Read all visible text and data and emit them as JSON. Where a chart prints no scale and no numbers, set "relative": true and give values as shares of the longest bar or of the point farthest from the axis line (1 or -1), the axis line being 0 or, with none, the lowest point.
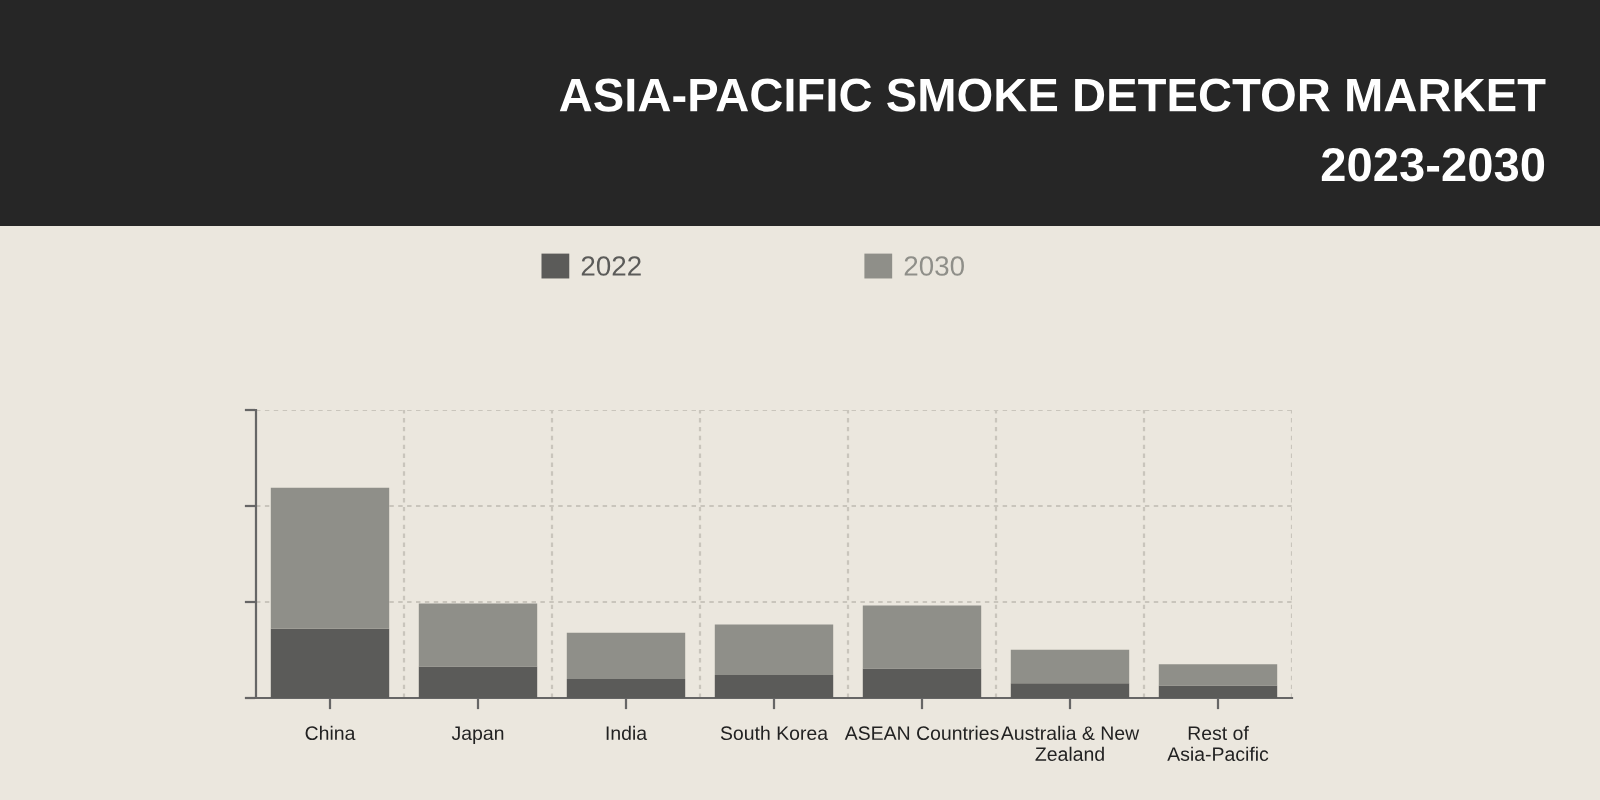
{
  "chart_data": {
    "type": "bar",
    "title": "ASIA-PACIFIC SMOKE DETECTOR MARKET\n2023-2030",
    "categories": [
      "China",
      "Japan",
      "India",
      "South Korea",
      "ASEAN Countries",
      "Australia & New\nZealand",
      "Rest of\nAsia-Pacific"
    ],
    "series": [
      {
        "name": "2022",
        "color": "#5b5b59",
        "values": [
          0.33,
          0.15,
          0.09,
          0.11,
          0.14,
          0.07,
          0.06
        ]
      },
      {
        "name": "2030",
        "color": "#8f8f89",
        "values": [
          0.67,
          0.3,
          0.22,
          0.24,
          0.3,
          0.16,
          0.1
        ]
      }
    ],
    "stacked": true,
    "relative": true,
    "legend": "top",
    "grid": true
  }
}
